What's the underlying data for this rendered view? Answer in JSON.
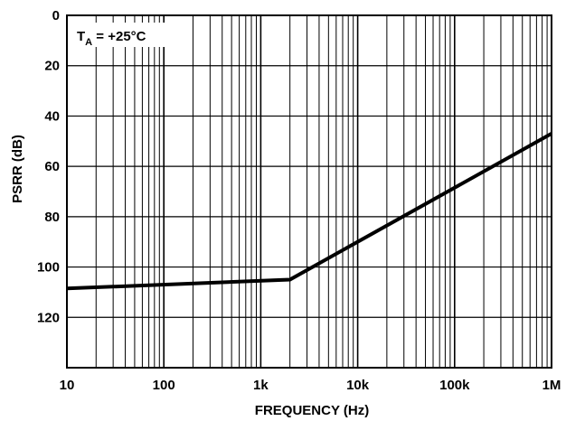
{
  "chart_data": {
    "type": "line",
    "xlabel": "FREQUENCY (Hz)",
    "ylabel": "PSRR (dB)",
    "x_scale": "log",
    "xlim": [
      10,
      1000000
    ],
    "ylim": [
      0,
      140
    ],
    "y_inverted": true,
    "grid": true,
    "x_ticks": [
      10,
      100,
      1000,
      10000,
      100000,
      1000000
    ],
    "x_tick_labels": [
      "10",
      "100",
      "1k",
      "10k",
      "100k",
      "1M"
    ],
    "y_ticks": [
      0,
      20,
      40,
      60,
      80,
      100,
      120
    ],
    "y_tick_labels": [
      "0",
      "20",
      "40",
      "60",
      "80",
      "100",
      "120"
    ],
    "annotation": {
      "main": "T",
      "sub": "A",
      "rest": " = +25°C"
    },
    "series": [
      {
        "x": [
          10,
          2000,
          1000000
        ],
        "y": [
          108.5,
          105,
          47
        ]
      }
    ]
  }
}
